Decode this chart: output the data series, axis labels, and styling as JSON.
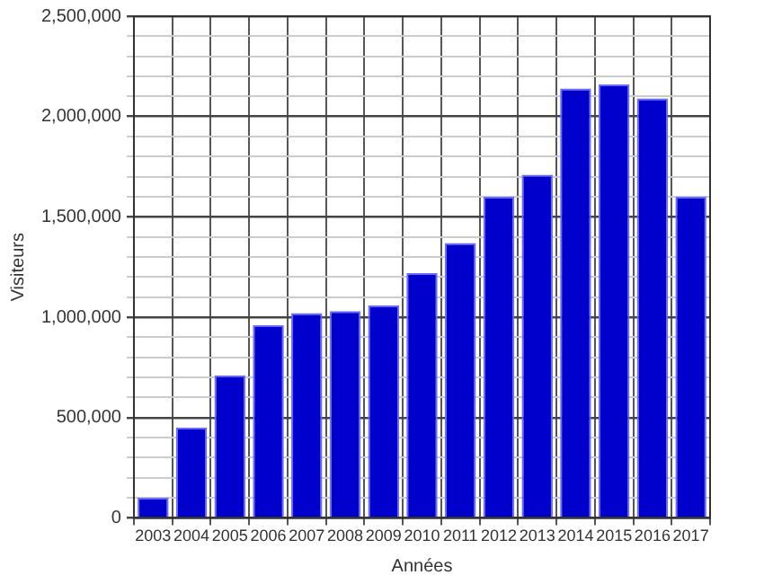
{
  "chart_data": {
    "type": "bar",
    "xlabel": "Années",
    "ylabel": "Visiteurs",
    "categories": [
      "2003",
      "2004",
      "2005",
      "2006",
      "2007",
      "2008",
      "2009",
      "2010",
      "2011",
      "2012",
      "2013",
      "2014",
      "2015",
      "2016",
      "2017"
    ],
    "values": [
      100000,
      450000,
      710000,
      960000,
      1020000,
      1030000,
      1060000,
      1220000,
      1370000,
      1600000,
      1710000,
      2140000,
      2160000,
      2090000,
      1600000
    ],
    "color": "#0000cc",
    "ylim": [
      0,
      2500000
    ],
    "yticks": [
      0,
      {
        "value": 100000,
        "label": null
      },
      {
        "value": 200000,
        "label": null
      },
      {
        "value": 300000,
        "label": null
      },
      {
        "value": 400000,
        "label": null
      },
      {
        "value": 500000,
        "label": "500,000"
      },
      {
        "value": 600000,
        "label": null
      },
      {
        "value": 700000,
        "label": null
      },
      {
        "value": 800000,
        "label": null
      },
      {
        "value": 900000,
        "label": null
      },
      {
        "value": 1000000,
        "label": "1,000,000"
      },
      {
        "value": 1100000,
        "label": null
      },
      {
        "value": 1200000,
        "label": null
      },
      {
        "value": 1300000,
        "label": null
      },
      {
        "value": 1400000,
        "label": null
      },
      {
        "value": 1500000,
        "label": "1,500,000"
      },
      {
        "value": 1600000,
        "label": null
      },
      {
        "value": 1700000,
        "label": null
      },
      {
        "value": 1800000,
        "label": null
      },
      {
        "value": 1900000,
        "label": null
      },
      {
        "value": 2000000,
        "label": "2,000,000"
      },
      {
        "value": 2100000,
        "label": null
      },
      {
        "value": 2200000,
        "label": null
      },
      {
        "value": 2300000,
        "label": null
      },
      {
        "value": 2400000,
        "label": null
      },
      {
        "value": 2500000,
        "label": "2,500,000"
      }
    ],
    "grid": true
  }
}
